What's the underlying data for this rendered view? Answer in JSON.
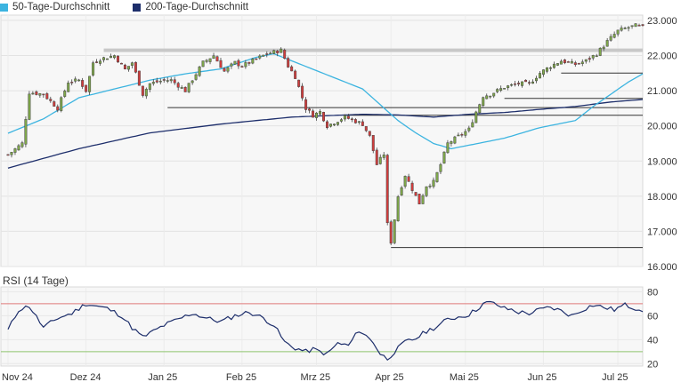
{
  "legend": {
    "items": [
      {
        "label": "50-Tage-Durchschnitt",
        "color": "#3cb4e0"
      },
      {
        "label": "200-Tage-Durchschnitt",
        "color": "#1d2e6b"
      }
    ]
  },
  "rsi_title": "RSI (14 Tage)",
  "colors": {
    "up": "#7fa84a",
    "down": "#d23c3c",
    "ma50": "#3cb4e0",
    "ma200": "#1d2e6b",
    "rsi": "#1d2e6b",
    "rsi_upper": "#e07a7a",
    "rsi_lower": "#8ec46e",
    "support": "#333333",
    "resistance_band": "#c8c8c8"
  },
  "chart_data": [
    {
      "type": "candlestick",
      "title": "",
      "x_tick_labels": [
        "Nov 24",
        "Dez 24",
        "Jan 25",
        "Feb 25",
        "Mrz 25",
        "Apr 25",
        "Mai 25",
        "Jun 25",
        "Jul 25"
      ],
      "x_tick_index": [
        0,
        22,
        44,
        66,
        87,
        108,
        129,
        151,
        172
      ],
      "y_ticks": [
        16000,
        17000,
        18000,
        19000,
        20000,
        21000,
        22000,
        23000
      ],
      "y_tick_labels": [
        "16.000",
        "17.000",
        "18.000",
        "19.000",
        "20.000",
        "21.000",
        "22.000",
        "23.000"
      ],
      "ylim": [
        16000,
        23150
      ],
      "grid": true,
      "n_days": 180,
      "price_anchors": [
        [
          0,
          19180
        ],
        [
          4,
          19500
        ],
        [
          6,
          20950
        ],
        [
          10,
          20900
        ],
        [
          14,
          20500
        ],
        [
          17,
          21250
        ],
        [
          20,
          21300
        ],
        [
          22,
          21000
        ],
        [
          24,
          21800
        ],
        [
          26,
          21900
        ],
        [
          30,
          22000
        ],
        [
          33,
          21600
        ],
        [
          35,
          21800
        ],
        [
          38,
          20900
        ],
        [
          40,
          21200
        ],
        [
          44,
          21300
        ],
        [
          46,
          21300
        ],
        [
          50,
          21000
        ],
        [
          55,
          21800
        ],
        [
          58,
          22000
        ],
        [
          61,
          21550
        ],
        [
          64,
          21800
        ],
        [
          66,
          21700
        ],
        [
          70,
          21900
        ],
        [
          73,
          22050
        ],
        [
          77,
          22150
        ],
        [
          79,
          21700
        ],
        [
          81,
          21400
        ],
        [
          84,
          20500
        ],
        [
          86,
          20300
        ],
        [
          88,
          20400
        ],
        [
          90,
          20000
        ],
        [
          95,
          20250
        ],
        [
          100,
          20050
        ],
        [
          102,
          19700
        ],
        [
          104,
          18900
        ],
        [
          106,
          19200
        ],
        [
          107,
          17200
        ],
        [
          108,
          16700
        ],
        [
          110,
          18000
        ],
        [
          112,
          18600
        ],
        [
          114,
          18200
        ],
        [
          116,
          17800
        ],
        [
          118,
          18300
        ],
        [
          120,
          18400
        ],
        [
          122,
          18900
        ],
        [
          124,
          19500
        ],
        [
          127,
          19700
        ],
        [
          130,
          19900
        ],
        [
          132,
          20400
        ],
        [
          134,
          20850
        ],
        [
          136,
          20900
        ],
        [
          140,
          21100
        ],
        [
          142,
          21150
        ],
        [
          144,
          21200
        ],
        [
          147,
          21200
        ],
        [
          150,
          21500
        ],
        [
          153,
          21700
        ],
        [
          156,
          21850
        ],
        [
          158,
          21800
        ],
        [
          160,
          21750
        ],
        [
          163,
          21850
        ],
        [
          166,
          22050
        ],
        [
          169,
          22400
        ],
        [
          172,
          22700
        ],
        [
          175,
          22800
        ],
        [
          177,
          22850
        ],
        [
          179,
          22800
        ]
      ],
      "ma50_anchors": [
        [
          0,
          19790
        ],
        [
          10,
          20200
        ],
        [
          20,
          20800
        ],
        [
          30,
          21050
        ],
        [
          40,
          21300
        ],
        [
          50,
          21480
        ],
        [
          60,
          21620
        ],
        [
          70,
          21950
        ],
        [
          75,
          22050
        ],
        [
          80,
          21850
        ],
        [
          90,
          21450
        ],
        [
          100,
          21050
        ],
        [
          105,
          20600
        ],
        [
          110,
          20150
        ],
        [
          115,
          19800
        ],
        [
          120,
          19500
        ],
        [
          125,
          19350
        ],
        [
          130,
          19450
        ],
        [
          140,
          19650
        ],
        [
          150,
          19950
        ],
        [
          160,
          20150
        ],
        [
          165,
          20550
        ],
        [
          170,
          20900
        ],
        [
          175,
          21250
        ],
        [
          179,
          21480
        ]
      ],
      "ma200_anchors": [
        [
          0,
          18800
        ],
        [
          20,
          19350
        ],
        [
          40,
          19800
        ],
        [
          60,
          20050
        ],
        [
          80,
          20250
        ],
        [
          100,
          20330
        ],
        [
          110,
          20310
        ],
        [
          120,
          20250
        ],
        [
          130,
          20330
        ],
        [
          140,
          20380
        ],
        [
          150,
          20470
        ],
        [
          160,
          20550
        ],
        [
          170,
          20680
        ],
        [
          179,
          20750
        ]
      ],
      "support_lines": [
        {
          "y": 16540,
          "start": 108
        },
        {
          "y": 20300,
          "start": 95
        },
        {
          "y": 20520,
          "start": 45
        },
        {
          "y": 20780,
          "start": 140
        },
        {
          "y": 21500,
          "start": 156
        }
      ],
      "resistance_band": {
        "y_low": 22100,
        "y_high": 22200,
        "start": 27
      }
    },
    {
      "type": "line",
      "title": "RSI (14 Tage)",
      "y_ticks": [
        20,
        40,
        60,
        80
      ],
      "ylim": [
        18,
        84
      ],
      "upper_level": 70,
      "lower_level": 30,
      "rsi_anchors": [
        [
          0,
          48
        ],
        [
          3,
          65
        ],
        [
          6,
          68
        ],
        [
          10,
          50
        ],
        [
          14,
          58
        ],
        [
          18,
          62
        ],
        [
          22,
          70
        ],
        [
          25,
          68
        ],
        [
          28,
          66
        ],
        [
          32,
          60
        ],
        [
          35,
          50
        ],
        [
          38,
          42
        ],
        [
          41,
          47
        ],
        [
          44,
          52
        ],
        [
          48,
          57
        ],
        [
          52,
          62
        ],
        [
          56,
          58
        ],
        [
          60,
          55
        ],
        [
          64,
          60
        ],
        [
          68,
          63
        ],
        [
          72,
          58
        ],
        [
          75,
          52
        ],
        [
          78,
          38
        ],
        [
          80,
          34
        ],
        [
          84,
          30
        ],
        [
          86,
          32
        ],
        [
          90,
          28
        ],
        [
          93,
          37
        ],
        [
          96,
          35
        ],
        [
          99,
          48
        ],
        [
          101,
          43
        ],
        [
          103,
          38
        ],
        [
          105,
          28
        ],
        [
          107,
          24
        ],
        [
          109,
          30
        ],
        [
          112,
          38
        ],
        [
          115,
          41
        ],
        [
          118,
          47
        ],
        [
          121,
          51
        ],
        [
          124,
          57
        ],
        [
          127,
          59
        ],
        [
          130,
          61
        ],
        [
          132,
          65
        ],
        [
          134,
          70
        ],
        [
          136,
          71
        ],
        [
          138,
          69
        ],
        [
          140,
          66
        ],
        [
          142,
          65
        ],
        [
          144,
          63
        ],
        [
          147,
          62
        ],
        [
          150,
          65
        ],
        [
          153,
          67
        ],
        [
          156,
          64
        ],
        [
          159,
          60
        ],
        [
          162,
          65
        ],
        [
          165,
          69
        ],
        [
          168,
          67
        ],
        [
          171,
          65
        ],
        [
          174,
          69
        ],
        [
          176,
          67
        ],
        [
          179,
          65
        ]
      ]
    }
  ]
}
